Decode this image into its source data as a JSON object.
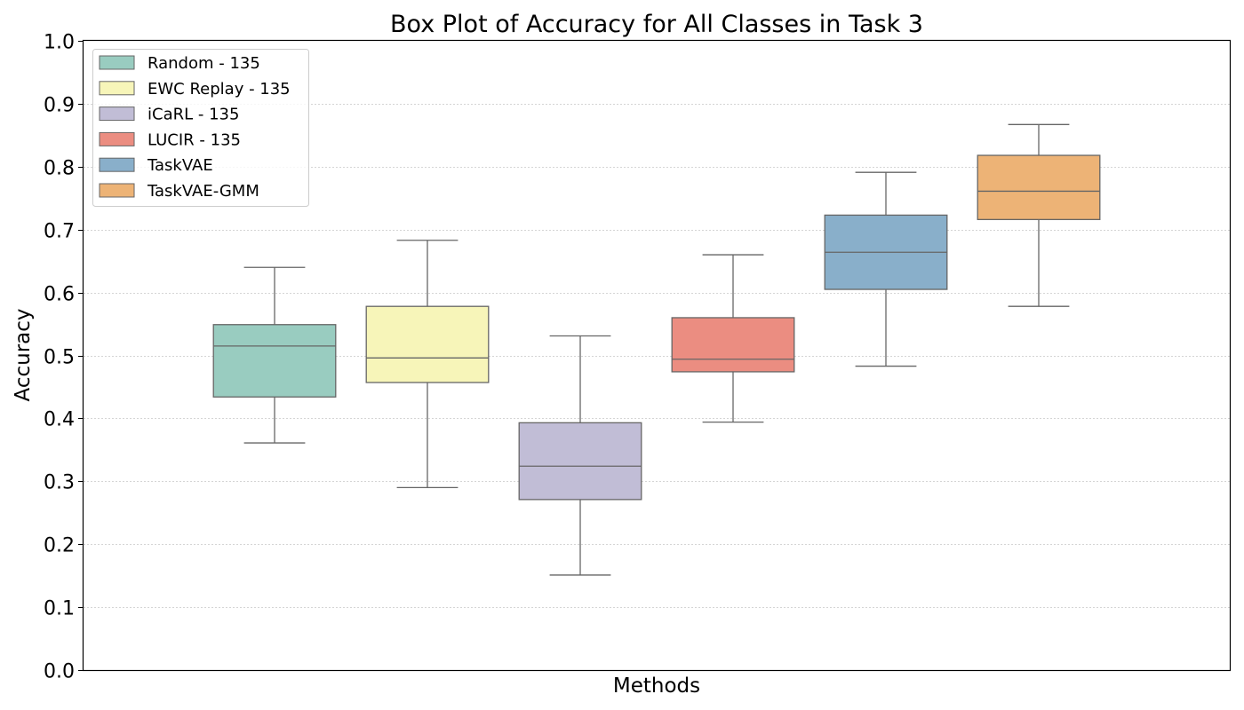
{
  "chart_data": {
    "type": "box",
    "title": "Box Plot of Accuracy for All Classes in Task 3",
    "xlabel": "Methods",
    "ylabel": "Accuracy",
    "ylim": [
      0.0,
      1.0
    ],
    "yticks": [
      "0.0",
      "0.1",
      "0.2",
      "0.3",
      "0.4",
      "0.5",
      "0.6",
      "0.7",
      "0.8",
      "0.9",
      "1.0"
    ],
    "grid": "horizontal dotted",
    "legend_position": "top-left",
    "series": [
      {
        "name": "Random - 135",
        "color": "#99CCC0",
        "whisker_low": 0.361,
        "q1": 0.434,
        "median": 0.515,
        "q3": 0.549,
        "whisker_high": 0.64
      },
      {
        "name": "EWC Replay - 135",
        "color": "#F7F5B9",
        "whisker_low": 0.29,
        "q1": 0.457,
        "median": 0.496,
        "q3": 0.578,
        "whisker_high": 0.683
      },
      {
        "name": "iCaRL - 135",
        "color": "#C1BDD6",
        "whisker_low": 0.151,
        "q1": 0.271,
        "median": 0.324,
        "q3": 0.393,
        "whisker_high": 0.531
      },
      {
        "name": "LUCIR - 135",
        "color": "#EB8D81",
        "whisker_low": 0.394,
        "q1": 0.474,
        "median": 0.494,
        "q3": 0.56,
        "whisker_high": 0.66
      },
      {
        "name": "TaskVAE",
        "color": "#89AFCA",
        "whisker_low": 0.483,
        "q1": 0.605,
        "median": 0.664,
        "q3": 0.723,
        "whisker_high": 0.791
      },
      {
        "name": "TaskVAE-GMM",
        "color": "#EDB376",
        "whisker_low": 0.578,
        "q1": 0.716,
        "median": 0.761,
        "q3": 0.818,
        "whisker_high": 0.867
      }
    ]
  }
}
